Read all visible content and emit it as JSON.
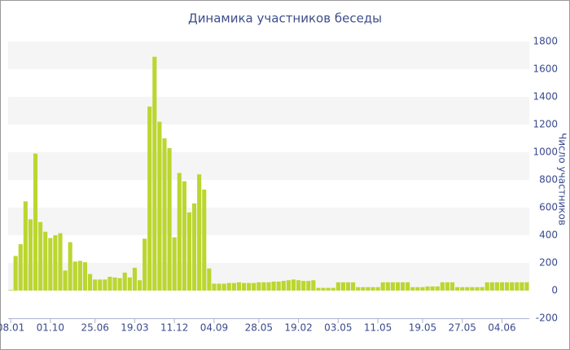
{
  "chart_data": {
    "type": "bar",
    "title": "Динамика участников беседы",
    "y_axis_label": "Число участников",
    "categories": [
      "08.01",
      null,
      null,
      null,
      null,
      null,
      null,
      null,
      "01.10",
      null,
      null,
      null,
      null,
      null,
      null,
      null,
      null,
      "25.06",
      null,
      null,
      null,
      null,
      null,
      null,
      null,
      "19.03",
      null,
      null,
      null,
      null,
      null,
      null,
      null,
      "11.12",
      null,
      null,
      null,
      null,
      null,
      null,
      null,
      "04.09",
      null,
      null,
      null,
      null,
      null,
      null,
      null,
      null,
      "28.05",
      null,
      null,
      null,
      null,
      null,
      null,
      null,
      "19.02",
      null,
      null,
      null,
      null,
      null,
      null,
      null,
      "03.05",
      null,
      null,
      null,
      null,
      null,
      null,
      null,
      "11.05",
      null,
      null,
      null,
      null,
      null,
      null,
      null,
      null,
      "19.05",
      null,
      null,
      null,
      null,
      null,
      null,
      null,
      "27.05",
      null,
      null,
      null,
      null,
      null,
      null,
      null,
      "04.06",
      null,
      null,
      null,
      null,
      null
    ],
    "values": [
      5,
      250,
      335,
      645,
      515,
      990,
      495,
      425,
      380,
      400,
      415,
      145,
      350,
      210,
      215,
      205,
      120,
      80,
      80,
      80,
      100,
      95,
      90,
      130,
      95,
      165,
      75,
      375,
      1330,
      1690,
      1220,
      1100,
      1030,
      385,
      850,
      790,
      565,
      630,
      840,
      730,
      160,
      50,
      50,
      50,
      55,
      55,
      60,
      55,
      55,
      55,
      60,
      60,
      60,
      65,
      65,
      70,
      75,
      80,
      75,
      70,
      70,
      75,
      20,
      20,
      20,
      20,
      60,
      60,
      60,
      60,
      25,
      25,
      25,
      25,
      25,
      60,
      60,
      60,
      60,
      60,
      60,
      25,
      25,
      25,
      30,
      30,
      30,
      60,
      60,
      60,
      25,
      25,
      25,
      25,
      25,
      25,
      60,
      60,
      60,
      60,
      60,
      60,
      60,
      60,
      60
    ],
    "color": "#bcd630",
    "band_color": "#f5f5f5",
    "ylim": [
      -200,
      1800
    ],
    "yticks": [
      -200,
      0,
      200,
      400,
      600,
      800,
      1000,
      1200,
      1400,
      1600,
      1800
    ],
    "grid": "bands"
  }
}
